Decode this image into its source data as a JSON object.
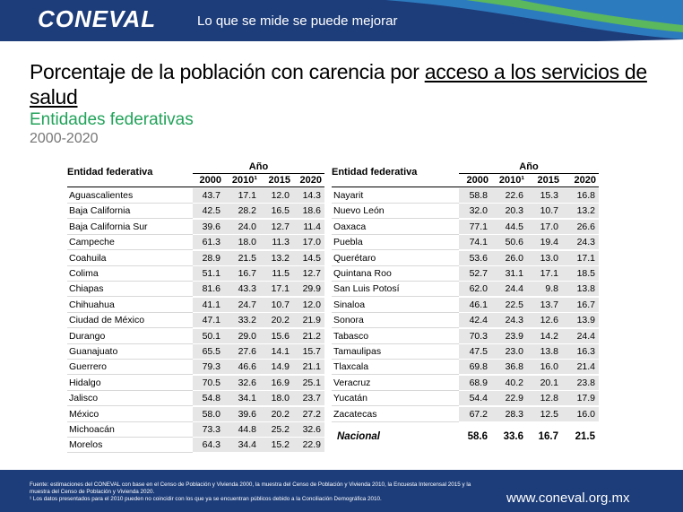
{
  "header": {
    "logo": "CONEVAL",
    "tagline": "Lo que se mide se puede mejorar"
  },
  "title": {
    "prefix": "Porcentaje de la población con carencia por ",
    "link": "acceso a los servicios de salud"
  },
  "subtitle": "Entidades federativas",
  "period": "2000-2020",
  "table": {
    "entity_header": "Entidad federativa",
    "year_header": "Año",
    "years": [
      "2000",
      "2010¹",
      "2015",
      "2020"
    ],
    "left": [
      [
        "Aguascalientes",
        "43.7",
        "17.1",
        "12.0",
        "14.3"
      ],
      [
        "Baja California",
        "42.5",
        "28.2",
        "16.5",
        "18.6"
      ],
      [
        "Baja California Sur",
        "39.6",
        "24.0",
        "12.7",
        "11.4"
      ],
      [
        "Campeche",
        "61.3",
        "18.0",
        "11.3",
        "17.0"
      ],
      [
        "Coahuila",
        "28.9",
        "21.5",
        "13.2",
        "14.5"
      ],
      [
        "Colima",
        "51.1",
        "16.7",
        "11.5",
        "12.7"
      ],
      [
        "Chiapas",
        "81.6",
        "43.3",
        "17.1",
        "29.9"
      ],
      [
        "Chihuahua",
        "41.1",
        "24.7",
        "10.7",
        "12.0"
      ],
      [
        "Ciudad de México",
        "47.1",
        "33.2",
        "20.2",
        "21.9"
      ],
      [
        "Durango",
        "50.1",
        "29.0",
        "15.6",
        "21.2"
      ],
      [
        "Guanajuato",
        "65.5",
        "27.6",
        "14.1",
        "15.7"
      ],
      [
        "Guerrero",
        "79.3",
        "46.6",
        "14.9",
        "21.1"
      ],
      [
        "Hidalgo",
        "70.5",
        "32.6",
        "16.9",
        "25.1"
      ],
      [
        "Jalisco",
        "54.8",
        "34.1",
        "18.0",
        "23.7"
      ],
      [
        "México",
        "58.0",
        "39.6",
        "20.2",
        "27.2"
      ],
      [
        "Michoacán",
        "73.3",
        "44.8",
        "25.2",
        "32.6"
      ],
      [
        "Morelos",
        "64.3",
        "34.4",
        "15.2",
        "22.9"
      ]
    ],
    "right": [
      [
        "Nayarit",
        "58.8",
        "22.6",
        "15.3",
        "16.8"
      ],
      [
        "Nuevo León",
        "32.0",
        "20.3",
        "10.7",
        "13.2"
      ],
      [
        "Oaxaca",
        "77.1",
        "44.5",
        "17.0",
        "26.6"
      ],
      [
        "Puebla",
        "74.1",
        "50.6",
        "19.4",
        "24.3"
      ],
      [
        "Querétaro",
        "53.6",
        "26.0",
        "13.0",
        "17.1"
      ],
      [
        "Quintana Roo",
        "52.7",
        "31.1",
        "17.1",
        "18.5"
      ],
      [
        "San Luis Potosí",
        "62.0",
        "24.4",
        "9.8",
        "13.8"
      ],
      [
        "Sinaloa",
        "46.1",
        "22.5",
        "13.7",
        "16.7"
      ],
      [
        "Sonora",
        "42.4",
        "24.3",
        "12.6",
        "13.9"
      ],
      [
        "Tabasco",
        "70.3",
        "23.9",
        "14.2",
        "24.4"
      ],
      [
        "Tamaulipas",
        "47.5",
        "23.0",
        "13.8",
        "16.3"
      ],
      [
        "Tlaxcala",
        "69.8",
        "36.8",
        "16.0",
        "21.4"
      ],
      [
        "Veracruz",
        "68.9",
        "40.2",
        "20.1",
        "23.8"
      ],
      [
        "Yucatán",
        "54.4",
        "22.9",
        "12.8",
        "17.9"
      ],
      [
        "Zacatecas",
        "67.2",
        "28.3",
        "12.5",
        "16.0"
      ],
      [
        "Nacional",
        "58.6",
        "33.6",
        "16.7",
        "21.5"
      ]
    ]
  },
  "footer": {
    "source": "Fuente: estimaciones del CONEVAL con base en el Censo de Población y Vivienda 2000, la muestra del Censo de Población y Vivienda 2010, la Encuesta Intercensal 2015 y la muestra del Censo de Población y Vivienda 2020.",
    "note": "¹ Los datos presentados para el 2010 pueden no coincidir con los que ya se encuentran públicos debido a la Conciliación Demográfica 2010.",
    "url": "www.coneval.org.mx"
  }
}
